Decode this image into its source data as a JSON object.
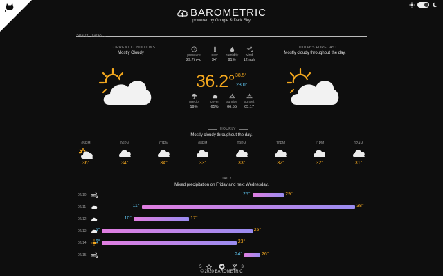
{
  "header": {
    "title": "BAROMETRIC",
    "subtitle": "powered by Google & Dark Sky"
  },
  "search": {
    "placeholder": "Search places..."
  },
  "current": {
    "label": "CURRENT CONDITIONS",
    "summary": "Mostly Cloudy",
    "temperature": "36.2°",
    "high": "38.5°",
    "low": "23.0°",
    "icon": "partly-cloudy-day-icon",
    "metrics": [
      {
        "label": "pressure",
        "value": "29.7inHg",
        "icon": "gauge-icon"
      },
      {
        "label": "dew",
        "value": "34°",
        "icon": "thermometer-icon"
      },
      {
        "label": "humidity",
        "value": "91%",
        "icon": "droplet-icon"
      },
      {
        "label": "wind",
        "value": "12mph",
        "icon": "wind-icon"
      },
      {
        "label": "precip",
        "value": "19%",
        "icon": "umbrella-icon"
      },
      {
        "label": "cover",
        "value": "65%",
        "icon": "cloud-icon"
      },
      {
        "label": "sunrise",
        "value": "06:55",
        "icon": "sunrise-icon"
      },
      {
        "label": "sunset",
        "value": "05:17",
        "icon": "sunset-icon"
      }
    ]
  },
  "today": {
    "label": "TODAY'S FORECAST",
    "summary": "Mostly cloudy throughout the day.",
    "icon": "partly-cloudy-day-icon"
  },
  "hourly": {
    "label": "HOURLY",
    "summary": "Mostly cloudy throughout the day.",
    "items": [
      {
        "time": "05PM",
        "temp": "36°",
        "icon": "partly-cloudy-icon"
      },
      {
        "time": "06PM",
        "temp": "34°",
        "icon": "cloud-icon"
      },
      {
        "time": "07PM",
        "temp": "34°",
        "icon": "cloud-icon"
      },
      {
        "time": "08PM",
        "temp": "33°",
        "icon": "cloud-icon"
      },
      {
        "time": "09PM",
        "temp": "33°",
        "icon": "cloud-icon"
      },
      {
        "time": "10PM",
        "temp": "32°",
        "icon": "cloud-icon"
      },
      {
        "time": "11PM",
        "temp": "32°",
        "icon": "cloud-icon"
      },
      {
        "time": "12AM",
        "temp": "31°",
        "icon": "cloud-icon"
      }
    ]
  },
  "daily": {
    "label": "DAILY",
    "summary": "Mixed precipitation on Friday and next Wednesday.",
    "range": [
      5,
      40
    ],
    "items": [
      {
        "date": "02/10",
        "low": "25°",
        "high": "29°",
        "low_v": 25,
        "high_v": 29,
        "icon": "wind-icon"
      },
      {
        "date": "02/11",
        "low": "11°",
        "high": "38°",
        "low_v": 11,
        "high_v": 38,
        "icon": "cloud-icon"
      },
      {
        "date": "02/12",
        "low": "10°",
        "high": "17°",
        "low_v": 10,
        "high_v": 17,
        "icon": "cloud-icon"
      },
      {
        "date": "02/13",
        "low": "6°",
        "high": "25°",
        "low_v": 6,
        "high_v": 25,
        "icon": "cloud-icon"
      },
      {
        "date": "02/14",
        "low": "6°",
        "high": "23°",
        "low_v": 6,
        "high_v": 23,
        "icon": "sun-icon"
      },
      {
        "date": "02/15",
        "low": "24°",
        "high": "26°",
        "low_v": 24,
        "high_v": 26,
        "icon": "wind-icon"
      }
    ]
  },
  "footer": {
    "stars": "5",
    "forks": "3",
    "copyright": "© 2020 BAROMETRIC"
  },
  "colors": {
    "accent": "#f4a81e",
    "cold": "#5fc6f1",
    "bar_warm": "#e07ee0",
    "bar_cool": "#9a8cf0"
  }
}
